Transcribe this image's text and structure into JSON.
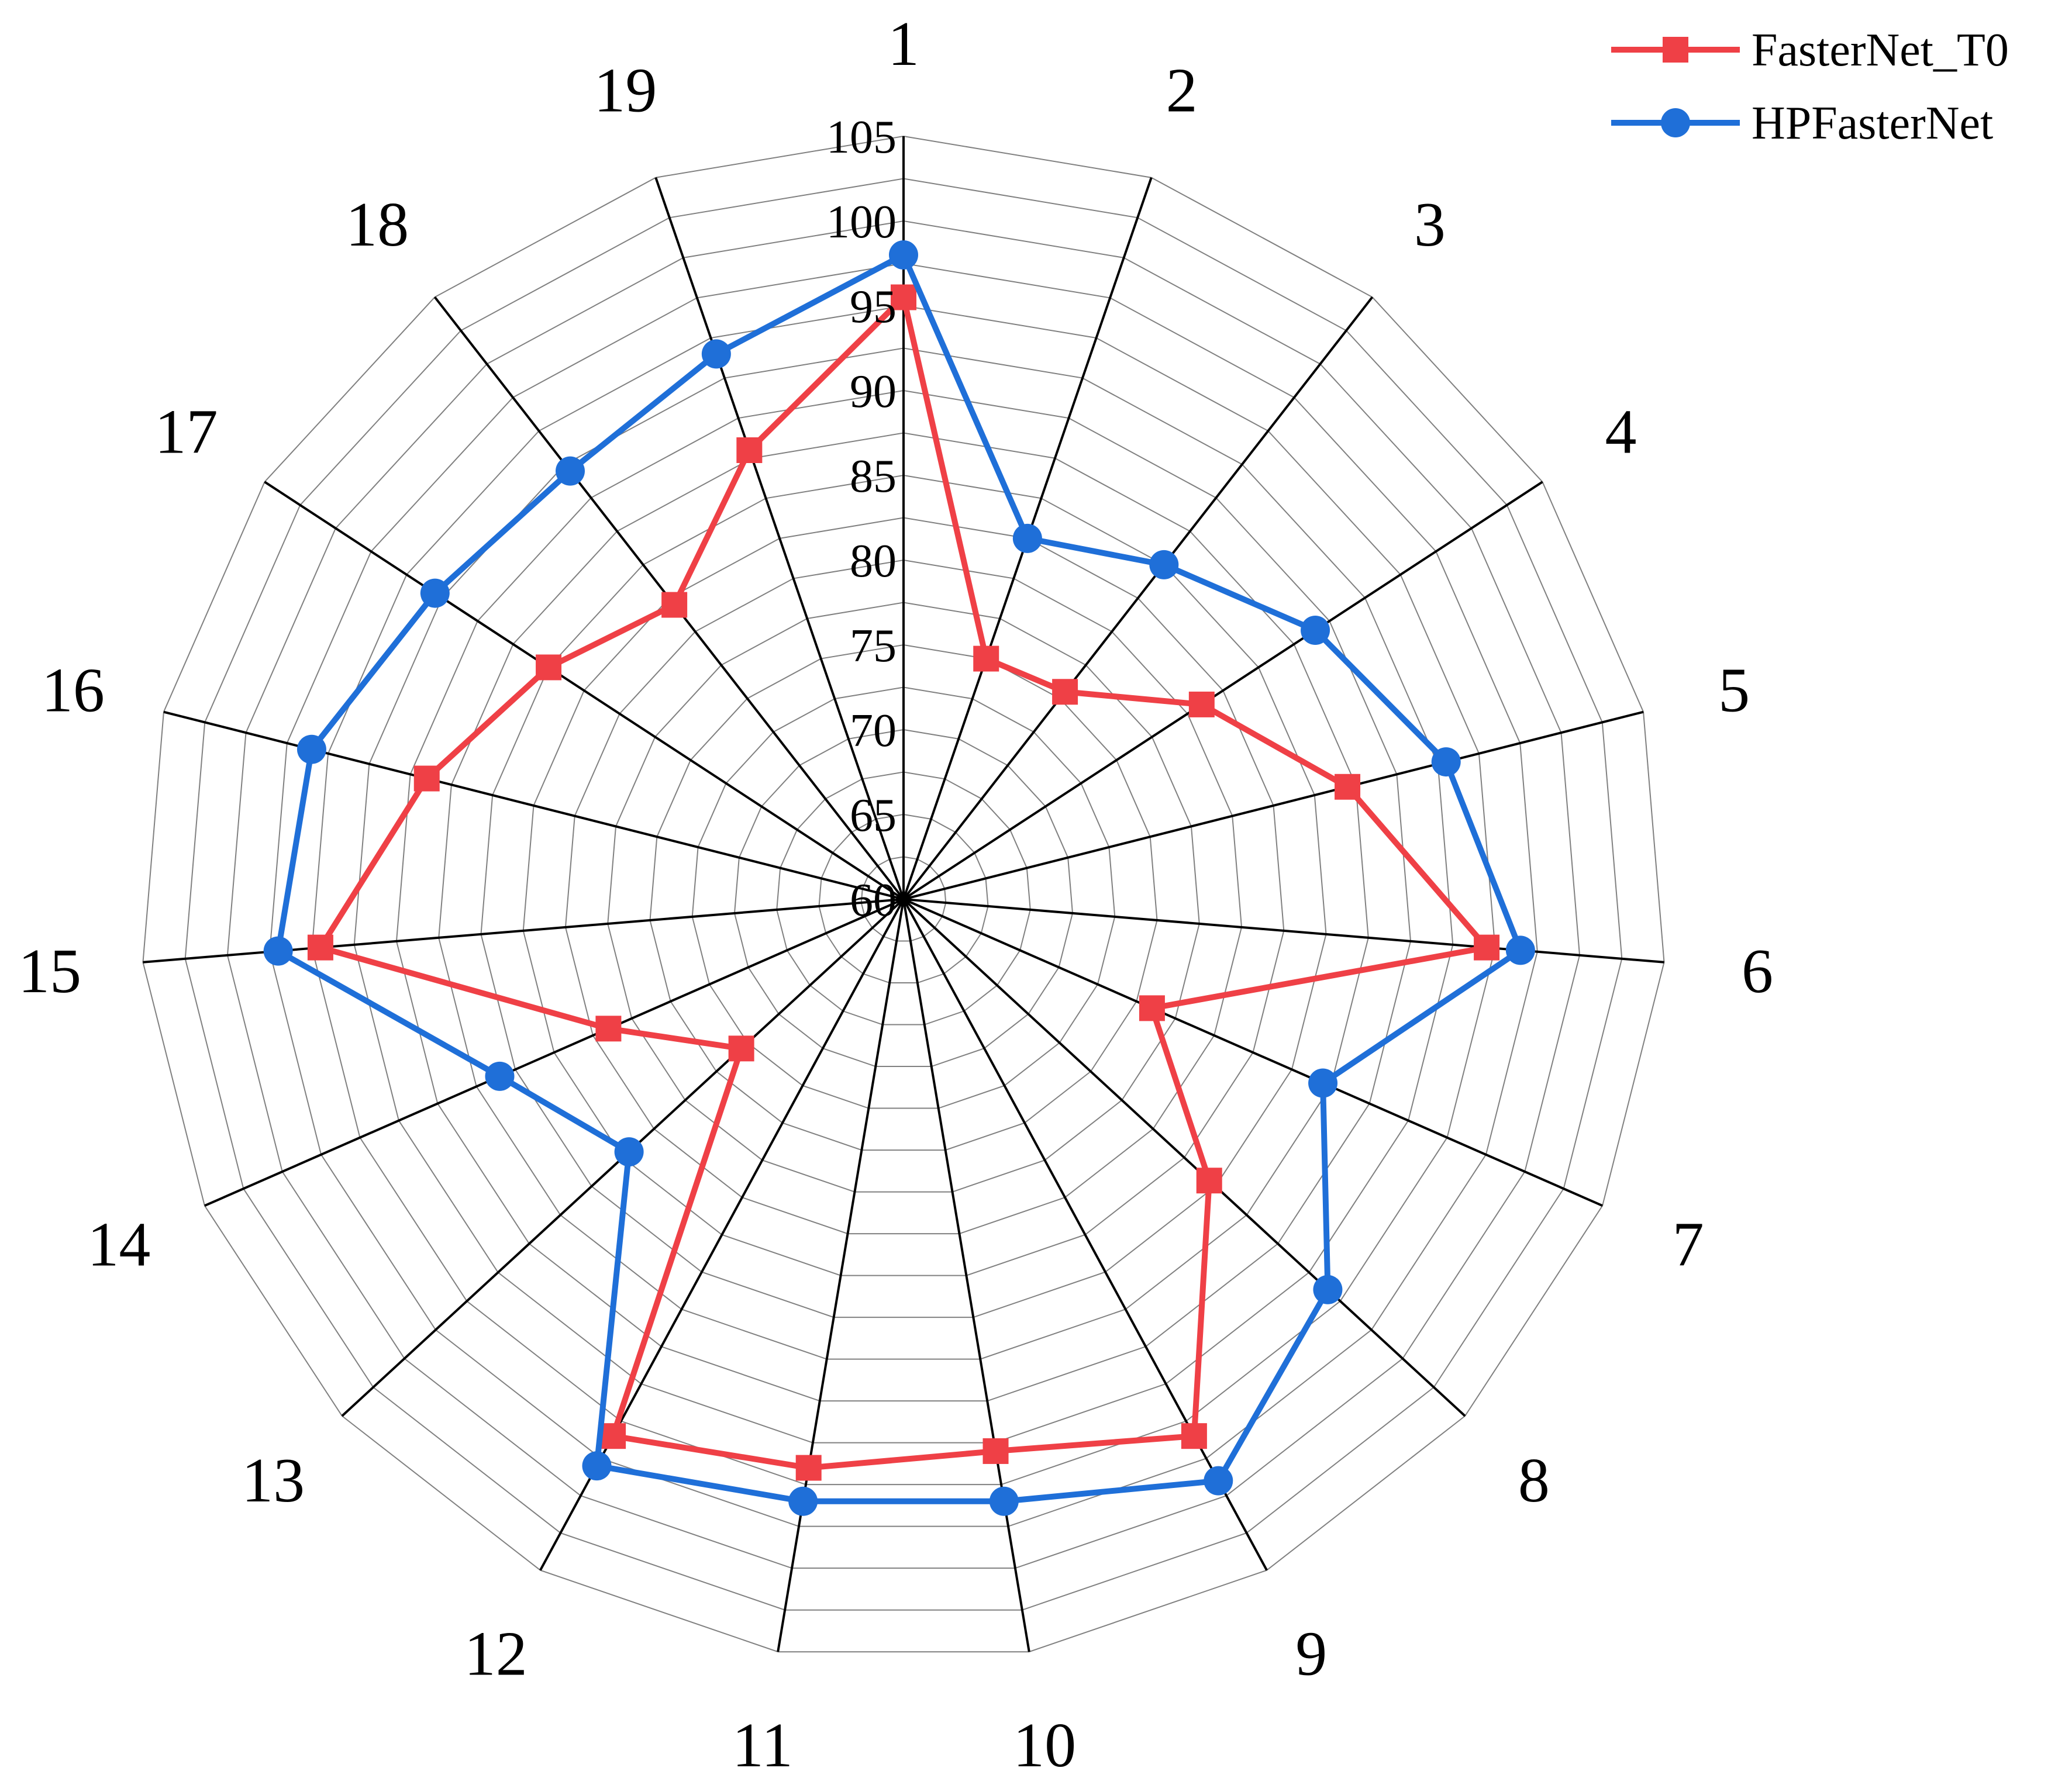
{
  "chart_data": {
    "type": "radar",
    "categories": [
      "1",
      "2",
      "3",
      "4",
      "5",
      "6",
      "7",
      "8",
      "9",
      "10",
      "11",
      "12",
      "13",
      "14",
      "15",
      "16",
      "17",
      "18",
      "19"
    ],
    "radial_ticks": [
      "60",
      "65",
      "70",
      "75",
      "80",
      "85",
      "90",
      "95",
      "100",
      "105"
    ],
    "rlim": [
      60,
      105
    ],
    "grid": true,
    "legend_position": "top-right",
    "series": [
      {
        "name": "FasterNet_T0",
        "color": "#ef4046",
        "marker": "square",
        "values": [
          95.5,
          75,
          75.5,
          81,
          87,
          94.5,
          76,
          84.5,
          96,
          93,
          94,
          96,
          73,
          79,
          94.5,
          89,
          85,
          82,
          88
        ]
      },
      {
        "name": "HPFasterNet",
        "color": "#1f6fd8",
        "marker": "circle",
        "values": [
          98,
          82.5,
          85,
          89,
          93,
          96.5,
          87,
          94,
          99,
          96,
          96,
          98,
          82,
          86,
          97,
          96,
          93,
          92,
          94
        ]
      }
    ]
  }
}
